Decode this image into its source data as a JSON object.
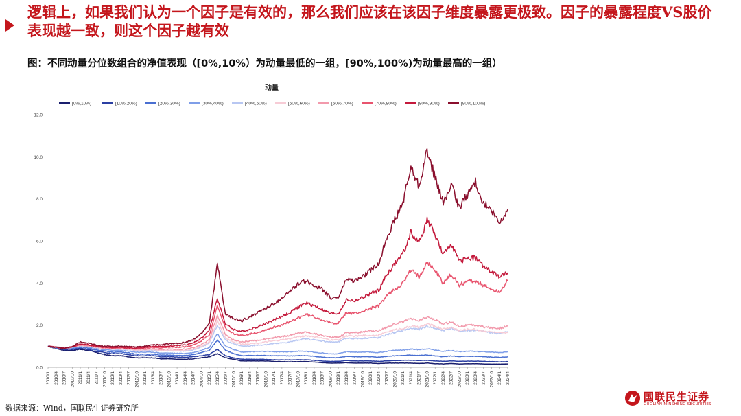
{
  "headline": "逻辑上，如果我们认为一个因子是有效的，那么我们应该在该因子维度暴露更极致。因子的暴露程度VS股价表现越一致，则这个因子越有效",
  "figure_title": "图：不同动量分位数组合的净值表现（[0%,10%）为动量最低的一组，[90%,100%)为动量最高的一组）",
  "source": "数据来源：Wind，国联民生证券研究所",
  "logo": {
    "cn": "国联民生证券",
    "en": "GUOLIAN MINSHENG SECURITIES"
  },
  "chart_data": {
    "type": "line",
    "title": "动量",
    "xlabel": "",
    "ylabel": "",
    "ylim": [
      0,
      12
    ],
    "yticks": [
      "0.0",
      "2.0",
      "4.0",
      "6.0",
      "8.0",
      "10.0",
      "12.0"
    ],
    "grid": false,
    "legend_position": "top",
    "x": [
      "2010/1",
      "2010/4",
      "2010/7",
      "2010/10",
      "2011/1",
      "2011/4",
      "2011/7",
      "2011/10",
      "2012/1",
      "2012/4",
      "2012/7",
      "2012/10",
      "2013/1",
      "2013/4",
      "2013/7",
      "2013/10",
      "2014/1",
      "2014/4",
      "2014/7",
      "2014/10",
      "2015/1",
      "2015/4",
      "2015/7",
      "2015/10",
      "2016/1",
      "2016/4",
      "2016/7",
      "2016/10",
      "2017/1",
      "2017/4",
      "2017/7",
      "2017/10",
      "2018/1",
      "2018/4",
      "2018/7",
      "2018/10",
      "2019/1",
      "2019/4",
      "2019/7",
      "2019/10",
      "2020/1",
      "2020/4",
      "2020/7",
      "2020/10",
      "2021/1",
      "2021/4",
      "2021/7",
      "2021/10",
      "2022/1",
      "2022/4",
      "2022/7",
      "2022/10",
      "2023/1",
      "2023/4",
      "2023/7",
      "2023/10",
      "2024/1",
      "2024/4"
    ],
    "series": [
      {
        "name": "[0%,10%)",
        "color": "#1a1f6e",
        "values": [
          1.0,
          0.9,
          0.8,
          0.8,
          0.85,
          0.8,
          0.7,
          0.6,
          0.55,
          0.55,
          0.5,
          0.45,
          0.45,
          0.45,
          0.4,
          0.4,
          0.38,
          0.38,
          0.4,
          0.45,
          0.5,
          0.65,
          0.45,
          0.38,
          0.3,
          0.3,
          0.3,
          0.3,
          0.28,
          0.27,
          0.26,
          0.27,
          0.27,
          0.25,
          0.22,
          0.2,
          0.2,
          0.22,
          0.2,
          0.2,
          0.2,
          0.18,
          0.2,
          0.2,
          0.2,
          0.2,
          0.18,
          0.2,
          0.17,
          0.16,
          0.18,
          0.16,
          0.17,
          0.17,
          0.16,
          0.15,
          0.15,
          0.16
        ]
      },
      {
        "name": "[10%,20%)",
        "color": "#2b3fa3",
        "values": [
          1.0,
          0.92,
          0.85,
          0.85,
          0.9,
          0.85,
          0.75,
          0.7,
          0.65,
          0.65,
          0.6,
          0.55,
          0.55,
          0.55,
          0.5,
          0.5,
          0.48,
          0.48,
          0.5,
          0.55,
          0.6,
          0.85,
          0.55,
          0.45,
          0.38,
          0.38,
          0.38,
          0.37,
          0.36,
          0.35,
          0.35,
          0.36,
          0.36,
          0.33,
          0.3,
          0.28,
          0.28,
          0.32,
          0.3,
          0.3,
          0.3,
          0.28,
          0.3,
          0.32,
          0.33,
          0.33,
          0.32,
          0.33,
          0.3,
          0.28,
          0.3,
          0.28,
          0.29,
          0.29,
          0.28,
          0.27,
          0.26,
          0.27
        ]
      },
      {
        "name": "[20%,30%)",
        "color": "#4a6fd1",
        "values": [
          1.0,
          0.93,
          0.88,
          0.9,
          0.95,
          0.9,
          0.82,
          0.78,
          0.72,
          0.72,
          0.68,
          0.62,
          0.62,
          0.62,
          0.58,
          0.58,
          0.56,
          0.56,
          0.6,
          0.7,
          0.8,
          1.3,
          0.8,
          0.65,
          0.55,
          0.56,
          0.56,
          0.56,
          0.55,
          0.54,
          0.54,
          0.55,
          0.55,
          0.52,
          0.48,
          0.45,
          0.45,
          0.52,
          0.5,
          0.5,
          0.5,
          0.48,
          0.52,
          0.55,
          0.56,
          0.58,
          0.56,
          0.58,
          0.54,
          0.5,
          0.54,
          0.5,
          0.52,
          0.52,
          0.5,
          0.48,
          0.47,
          0.5
        ]
      },
      {
        "name": "[30%,40%)",
        "color": "#7f9ee8",
        "values": [
          1.0,
          0.95,
          0.9,
          0.92,
          0.98,
          0.95,
          0.88,
          0.84,
          0.8,
          0.8,
          0.76,
          0.72,
          0.72,
          0.72,
          0.68,
          0.68,
          0.66,
          0.66,
          0.7,
          0.8,
          0.95,
          1.6,
          1.0,
          0.85,
          0.72,
          0.74,
          0.75,
          0.75,
          0.74,
          0.73,
          0.74,
          0.76,
          0.76,
          0.72,
          0.68,
          0.64,
          0.64,
          0.74,
          0.72,
          0.72,
          0.72,
          0.7,
          0.76,
          0.8,
          0.82,
          0.86,
          0.84,
          0.88,
          0.82,
          0.76,
          0.8,
          0.74,
          0.76,
          0.76,
          0.74,
          0.72,
          0.7,
          0.74
        ]
      },
      {
        "name": "[40%,50%)",
        "color": "#b8c7f2",
        "values": [
          1.0,
          0.96,
          0.92,
          0.95,
          1.02,
          1.0,
          0.93,
          0.9,
          0.86,
          0.86,
          0.84,
          0.8,
          0.8,
          0.82,
          0.78,
          0.78,
          0.77,
          0.77,
          0.82,
          0.95,
          1.15,
          2.0,
          1.3,
          1.1,
          1.0,
          1.02,
          1.05,
          1.08,
          1.12,
          1.15,
          1.2,
          1.3,
          1.35,
          1.3,
          1.25,
          1.2,
          1.2,
          1.38,
          1.36,
          1.38,
          1.4,
          1.4,
          1.55,
          1.65,
          1.75,
          1.85,
          1.8,
          1.95,
          1.85,
          1.75,
          1.85,
          1.7,
          1.75,
          1.75,
          1.7,
          1.65,
          1.6,
          1.7
        ]
      },
      {
        "name": "[50%,60%)",
        "color": "#f7ccd6",
        "values": [
          1.0,
          0.96,
          0.92,
          0.96,
          1.03,
          1.0,
          0.94,
          0.9,
          0.87,
          0.87,
          0.85,
          0.82,
          0.82,
          0.84,
          0.8,
          0.81,
          0.8,
          0.8,
          0.86,
          1.0,
          1.2,
          2.2,
          1.4,
          1.2,
          1.1,
          1.12,
          1.15,
          1.2,
          1.25,
          1.3,
          1.35,
          1.45,
          1.5,
          1.45,
          1.38,
          1.3,
          1.3,
          1.5,
          1.48,
          1.5,
          1.52,
          1.52,
          1.68,
          1.78,
          1.85,
          1.95,
          1.9,
          2.05,
          1.95,
          1.82,
          1.9,
          1.75,
          1.8,
          1.8,
          1.72,
          1.68,
          1.62,
          1.65
        ]
      },
      {
        "name": "[60%,70%)",
        "color": "#f29aac",
        "values": [
          1.0,
          0.96,
          0.92,
          0.97,
          1.05,
          1.02,
          0.96,
          0.92,
          0.9,
          0.9,
          0.88,
          0.85,
          0.85,
          0.88,
          0.84,
          0.86,
          0.85,
          0.86,
          0.92,
          1.08,
          1.3,
          2.5,
          1.55,
          1.3,
          1.2,
          1.24,
          1.28,
          1.34,
          1.4,
          1.45,
          1.52,
          1.62,
          1.68,
          1.6,
          1.52,
          1.42,
          1.42,
          1.66,
          1.64,
          1.68,
          1.72,
          1.74,
          1.92,
          2.05,
          2.15,
          2.3,
          2.2,
          2.4,
          2.25,
          2.05,
          2.15,
          1.95,
          2.0,
          2.0,
          1.92,
          1.88,
          1.85,
          1.95
        ]
      },
      {
        "name": "[70%,80%)",
        "color": "#e8546e",
        "values": [
          1.0,
          0.95,
          0.9,
          0.97,
          1.08,
          1.05,
          0.98,
          0.94,
          0.92,
          0.92,
          0.9,
          0.88,
          0.9,
          0.95,
          0.92,
          0.95,
          0.95,
          0.97,
          1.05,
          1.25,
          1.55,
          2.9,
          1.85,
          1.6,
          1.5,
          1.58,
          1.66,
          1.78,
          1.9,
          2.02,
          2.15,
          2.35,
          2.5,
          2.4,
          2.25,
          2.1,
          2.1,
          2.6,
          2.55,
          2.65,
          2.8,
          2.9,
          3.4,
          3.7,
          4.0,
          4.6,
          4.3,
          5.0,
          4.6,
          4.0,
          4.4,
          3.9,
          4.1,
          4.1,
          3.9,
          3.7,
          3.6,
          4.1
        ]
      },
      {
        "name": "[80%,90%)",
        "color": "#c41a3c",
        "values": [
          1.0,
          0.95,
          0.9,
          0.98,
          1.1,
          1.07,
          1.0,
          0.96,
          0.94,
          0.94,
          0.93,
          0.91,
          0.94,
          1.0,
          0.98,
          1.02,
          1.03,
          1.06,
          1.15,
          1.38,
          1.75,
          3.3,
          2.05,
          1.8,
          1.7,
          1.8,
          1.92,
          2.08,
          2.25,
          2.42,
          2.6,
          2.85,
          3.05,
          2.92,
          2.75,
          2.55,
          2.55,
          3.2,
          3.15,
          3.3,
          3.5,
          3.65,
          4.4,
          4.9,
          5.4,
          6.4,
          5.9,
          7.0,
          6.3,
          5.3,
          5.9,
          5.0,
          5.2,
          5.2,
          4.8,
          4.5,
          4.3,
          4.5
        ]
      },
      {
        "name": "[90%,100%)",
        "color": "#8a0f2d",
        "values": [
          1.0,
          0.95,
          0.9,
          0.98,
          1.2,
          1.15,
          1.05,
          1.0,
          1.0,
          1.0,
          0.98,
          0.96,
          1.0,
          1.08,
          1.06,
          1.12,
          1.14,
          1.18,
          1.3,
          1.6,
          2.1,
          4.9,
          2.5,
          2.3,
          2.2,
          2.4,
          2.6,
          2.8,
          3.0,
          3.3,
          3.6,
          3.95,
          4.1,
          3.9,
          3.7,
          3.3,
          3.3,
          4.2,
          4.1,
          4.3,
          4.6,
          4.9,
          6.2,
          7.0,
          7.8,
          9.5,
          8.6,
          10.3,
          9.0,
          7.8,
          8.6,
          7.6,
          8.2,
          8.8,
          7.8,
          7.4,
          6.8,
          7.5
        ]
      }
    ]
  }
}
